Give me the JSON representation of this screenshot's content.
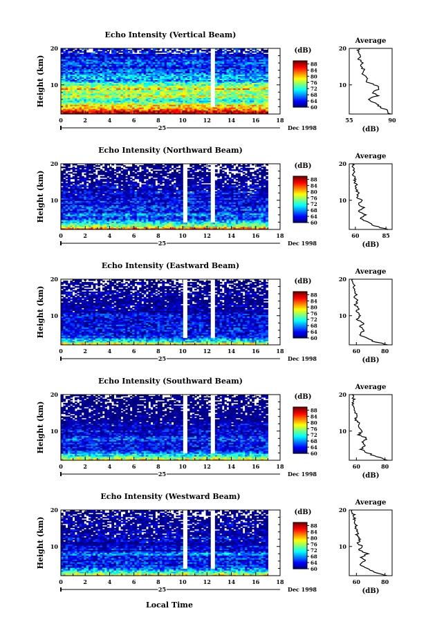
{
  "figure": {
    "date_label": "Dec 1998",
    "day_label": "25",
    "xaxis_title": "Local Time",
    "ylabel": "Height (km)",
    "colorbar_unit": "(dB)",
    "avg_title": "Average",
    "avg_xlabel": "(dB)"
  },
  "chart_data": [
    {
      "type": "heatmap",
      "title": "Echo Intensity (Vertical Beam)",
      "x_ticks": [
        0,
        2,
        4,
        6,
        8,
        10,
        12,
        14,
        16,
        18
      ],
      "xlim": [
        0,
        18
      ],
      "y_ticks": [
        10,
        20
      ],
      "ylim": [
        2,
        20
      ],
      "colorbar_ticks": [
        60,
        64,
        68,
        72,
        76,
        80,
        84,
        88
      ],
      "colorbar_range": [
        60,
        90
      ],
      "data_end_hour": 17,
      "missing_columns_hours": [
        12.5
      ],
      "average_profile": {
        "x_ticks": [
          55,
          90
        ],
        "xlim": [
          55,
          90
        ],
        "height": [
          2,
          3,
          4,
          5,
          6,
          7,
          8,
          9,
          10,
          11,
          12,
          13,
          14,
          15,
          16,
          17,
          18,
          19,
          20
        ],
        "values": [
          88,
          86,
          80,
          76,
          70,
          78,
          74,
          80,
          76,
          68,
          70,
          66,
          68,
          64,
          66,
          63,
          64,
          62,
          63
        ]
      }
    },
    {
      "type": "heatmap",
      "title": "Echo Intensity (Northward Beam)",
      "x_ticks": [
        0,
        2,
        4,
        6,
        8,
        10,
        12,
        14,
        16,
        18
      ],
      "xlim": [
        0,
        18
      ],
      "y_ticks": [
        10,
        20
      ],
      "ylim": [
        2,
        20
      ],
      "colorbar_ticks": [
        60,
        64,
        68,
        72,
        76,
        80,
        84,
        88
      ],
      "colorbar_range": [
        60,
        90
      ],
      "data_end_hour": 17,
      "missing_columns_hours": [
        10.2,
        12.5
      ],
      "average_profile": {
        "x_ticks": [
          60,
          85
        ],
        "xlim": [
          55,
          90
        ],
        "height": [
          2,
          3,
          4,
          5,
          6,
          7,
          8,
          9,
          10,
          11,
          12,
          13,
          14,
          15,
          16,
          17,
          18,
          19,
          20
        ],
        "values": [
          86,
          76,
          70,
          64,
          68,
          63,
          67,
          62,
          65,
          61,
          63,
          60,
          61,
          59,
          60,
          58,
          59,
          58,
          58
        ]
      }
    },
    {
      "type": "heatmap",
      "title": "Echo Intensity (Eastward Beam)",
      "x_ticks": [
        0,
        2,
        4,
        6,
        8,
        10,
        12,
        14,
        16,
        18
      ],
      "xlim": [
        0,
        18
      ],
      "y_ticks": [
        10,
        20
      ],
      "ylim": [
        2,
        20
      ],
      "colorbar_ticks": [
        60,
        64,
        68,
        72,
        76,
        80,
        84,
        88
      ],
      "colorbar_range": [
        60,
        90
      ],
      "data_end_hour": 17,
      "missing_columns_hours": [
        10.2,
        12.5
      ],
      "average_profile": {
        "x_ticks": [
          60,
          80
        ],
        "xlim": [
          55,
          85
        ],
        "height": [
          2,
          3,
          4,
          5,
          6,
          7,
          8,
          9,
          10,
          11,
          12,
          13,
          14,
          15,
          16,
          17,
          18,
          19,
          20
        ],
        "values": [
          82,
          72,
          66,
          62,
          66,
          62,
          65,
          61,
          63,
          60,
          62,
          59,
          61,
          59,
          60,
          58,
          59,
          58,
          57
        ]
      }
    },
    {
      "type": "heatmap",
      "title": "Echo Intensity (Southward Beam)",
      "x_ticks": [
        0,
        2,
        4,
        6,
        8,
        10,
        12,
        14,
        16,
        18
      ],
      "xlim": [
        0,
        18
      ],
      "y_ticks": [
        10,
        20
      ],
      "ylim": [
        2,
        20
      ],
      "colorbar_ticks": [
        60,
        64,
        68,
        72,
        76,
        80,
        84,
        88
      ],
      "colorbar_range": [
        60,
        90
      ],
      "data_end_hour": 17,
      "missing_columns_hours": [
        10.2,
        12.5
      ],
      "average_profile": {
        "x_ticks": [
          60,
          80
        ],
        "xlim": [
          55,
          85
        ],
        "height": [
          2,
          3,
          4,
          5,
          6,
          7,
          8,
          9,
          10,
          11,
          12,
          13,
          14,
          15,
          16,
          17,
          18,
          19,
          20
        ],
        "values": [
          82,
          74,
          68,
          63,
          66,
          64,
          67,
          62,
          64,
          61,
          62,
          60,
          60,
          59,
          59,
          58,
          58,
          58,
          57
        ]
      }
    },
    {
      "type": "heatmap",
      "title": "Echo Intensity (Westward Beam)",
      "x_ticks": [
        0,
        2,
        4,
        6,
        8,
        10,
        12,
        14,
        16,
        18
      ],
      "xlim": [
        0,
        18
      ],
      "y_ticks": [
        10,
        20
      ],
      "ylim": [
        2,
        20
      ],
      "colorbar_ticks": [
        60,
        64,
        68,
        72,
        76,
        80,
        84,
        88
      ],
      "colorbar_range": [
        60,
        90
      ],
      "data_end_hour": 17,
      "missing_columns_hours": [
        10.2,
        12.5
      ],
      "average_profile": {
        "x_ticks": [
          60,
          80
        ],
        "xlim": [
          55,
          85
        ],
        "height": [
          2,
          3,
          4,
          5,
          6,
          7,
          8,
          9,
          10,
          11,
          12,
          13,
          14,
          15,
          16,
          17,
          18,
          19,
          20
        ],
        "values": [
          82,
          72,
          67,
          62,
          66,
          63,
          68,
          62,
          64,
          61,
          63,
          60,
          61,
          59,
          60,
          58,
          59,
          58,
          57
        ]
      }
    }
  ]
}
